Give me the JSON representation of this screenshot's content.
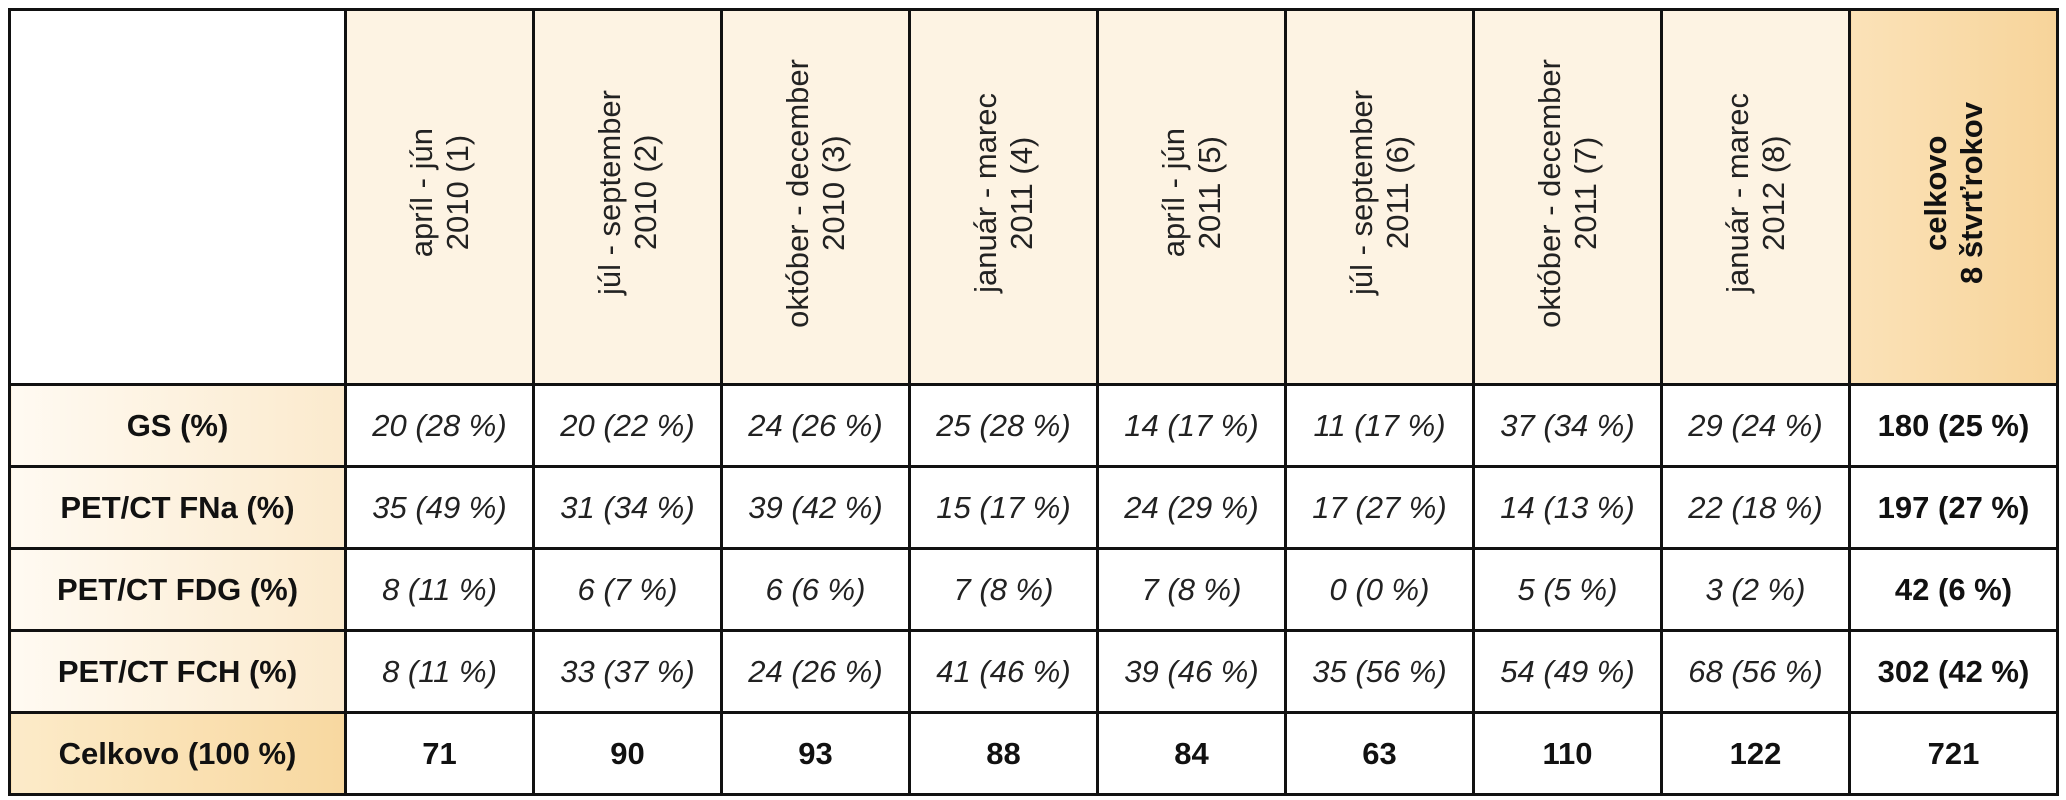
{
  "table": {
    "headers": [
      [
        "apríl - jún",
        "2010 (1)"
      ],
      [
        "júl - september",
        "2010 (2)"
      ],
      [
        "október - december",
        "2010 (3)"
      ],
      [
        "január - marec",
        "2011 (4)"
      ],
      [
        "apríl - jún",
        "2011 (5)"
      ],
      [
        "júl - september",
        "2011 (6)"
      ],
      [
        "október - december",
        "2011 (7)"
      ],
      [
        "január - marec",
        "2012 (8)"
      ],
      [
        "celkovo",
        "8 štvrťrokov"
      ]
    ],
    "rows": [
      {
        "label": "GS (%)",
        "cells": [
          "20 (28 %)",
          "20 (22 %)",
          "24 (26 %)",
          "25 (28 %)",
          "14 (17 %)",
          "11 (17 %)",
          "37 (34 %)",
          "29 (24 %)",
          "180 (25 %)"
        ]
      },
      {
        "label": "PET/CT FNa (%)",
        "cells": [
          "35 (49 %)",
          "31 (34 %)",
          "39 (42 %)",
          "15 (17 %)",
          "24 (29 %)",
          "17 (27 %)",
          "14 (13 %)",
          "22 (18 %)",
          "197 (27 %)"
        ]
      },
      {
        "label": "PET/CT FDG (%)",
        "cells": [
          "8 (11 %)",
          "6 (7 %)",
          "6 (6 %)",
          "7 (8 %)",
          "7 (8 %)",
          "0 (0 %)",
          "5 (5 %)",
          "3 (2 %)",
          "42 (6 %)"
        ]
      },
      {
        "label": "PET/CT FCH (%)",
        "cells": [
          "8 (11 %)",
          "33 (37 %)",
          "24 (26 %)",
          "41 (46 %)",
          "39 (46 %)",
          "35 (56 %)",
          "54 (49 %)",
          "68 (56 %)",
          "302 (42 %)"
        ]
      },
      {
        "label": "Celkovo (100 %)",
        "cells": [
          71,
          90,
          93,
          88,
          84,
          63,
          110,
          122,
          721
        ]
      }
    ]
  }
}
